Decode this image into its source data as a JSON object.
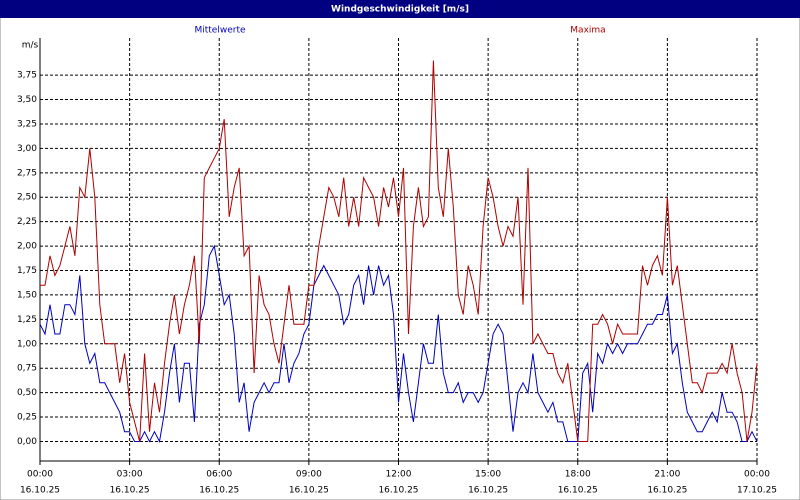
{
  "chart_data": {
    "type": "line",
    "title": "Windgeschwindigkeit [m/s]",
    "y_label": "m/s",
    "x": [
      0,
      10,
      20,
      30,
      40,
      50,
      60,
      70,
      80,
      90,
      100,
      110,
      120,
      130,
      140,
      150,
      160,
      170,
      180,
      190,
      200,
      210,
      220,
      230,
      240,
      250,
      260,
      270,
      280,
      290,
      300,
      310,
      320,
      330,
      340,
      350,
      360,
      370,
      380,
      390,
      400,
      410,
      420,
      430,
      440,
      450,
      460,
      470,
      480,
      490,
      500,
      510,
      520,
      530,
      540,
      550,
      560,
      570,
      580,
      590,
      600,
      610,
      620,
      630,
      640,
      650,
      660,
      670,
      680,
      690,
      700,
      710,
      720,
      730,
      740,
      750,
      760,
      770,
      780,
      790,
      800,
      810,
      820,
      830,
      840,
      850,
      860,
      870,
      880,
      890,
      900,
      910,
      920,
      930,
      940,
      950,
      960,
      970,
      980,
      990,
      1000,
      1010,
      1020,
      1030,
      1040,
      1050,
      1060,
      1070,
      1080,
      1090,
      1100,
      1110,
      1120,
      1130,
      1140,
      1150,
      1160,
      1170,
      1180,
      1190,
      1200,
      1210,
      1220,
      1230,
      1240,
      1250,
      1260,
      1270,
      1280,
      1290,
      1300,
      1310,
      1320,
      1330,
      1340,
      1350,
      1360,
      1370,
      1380,
      1390,
      1400,
      1410,
      1420,
      1430,
      1440
    ],
    "series": [
      {
        "name": "Mittelwerte",
        "color": "#0000c0",
        "values": [
          1.2,
          1.1,
          1.4,
          1.1,
          1.1,
          1.4,
          1.4,
          1.3,
          1.7,
          1.0,
          0.8,
          0.9,
          0.6,
          0.6,
          0.5,
          0.4,
          0.3,
          0.1,
          0.1,
          0.0,
          0.0,
          0.1,
          0.0,
          0.1,
          0.0,
          0.3,
          0.7,
          1.0,
          0.4,
          0.8,
          0.8,
          0.2,
          1.2,
          1.4,
          1.9,
          2.0,
          1.7,
          1.4,
          1.5,
          1.1,
          0.4,
          0.6,
          0.1,
          0.4,
          0.5,
          0.6,
          0.5,
          0.6,
          0.6,
          1.0,
          0.6,
          0.8,
          0.9,
          1.1,
          1.2,
          1.6,
          1.7,
          1.8,
          1.7,
          1.6,
          1.5,
          1.2,
          1.3,
          1.6,
          1.7,
          1.4,
          1.8,
          1.5,
          1.8,
          1.6,
          1.7,
          1.3,
          0.4,
          0.9,
          0.5,
          0.2,
          0.6,
          1.0,
          0.8,
          0.8,
          1.3,
          0.7,
          0.5,
          0.5,
          0.6,
          0.4,
          0.5,
          0.5,
          0.4,
          0.5,
          0.8,
          1.1,
          1.2,
          1.1,
          0.6,
          0.1,
          0.5,
          0.6,
          0.5,
          0.9,
          0.5,
          0.4,
          0.3,
          0.4,
          0.2,
          0.2,
          0.0,
          0.0,
          0.0,
          0.7,
          0.8,
          0.3,
          0.9,
          0.8,
          1.0,
          0.9,
          1.0,
          0.9,
          1.0,
          1.0,
          1.0,
          1.1,
          1.2,
          1.2,
          1.3,
          1.3,
          1.5,
          0.9,
          1.0,
          0.6,
          0.3,
          0.2,
          0.1,
          0.1,
          0.2,
          0.3,
          0.2,
          0.5,
          0.3,
          0.3,
          0.2,
          0.0,
          0.0,
          0.1,
          0.0
        ]
      },
      {
        "name": "Maxima",
        "color": "#b00000",
        "values": [
          1.6,
          1.6,
          1.9,
          1.7,
          1.8,
          2.0,
          2.2,
          1.9,
          2.6,
          2.5,
          3.0,
          2.5,
          1.4,
          1.0,
          1.0,
          1.0,
          0.6,
          0.9,
          0.4,
          0.2,
          0.0,
          0.9,
          0.1,
          0.6,
          0.3,
          0.8,
          1.2,
          1.5,
          1.1,
          1.4,
          1.6,
          1.9,
          1.0,
          2.7,
          2.8,
          2.9,
          3.0,
          3.3,
          2.3,
          2.6,
          2.8,
          1.9,
          2.0,
          0.7,
          1.7,
          1.4,
          1.3,
          1.0,
          0.8,
          1.2,
          1.6,
          1.2,
          1.2,
          1.2,
          1.6,
          1.6,
          2.0,
          2.3,
          2.6,
          2.5,
          2.3,
          2.7,
          2.2,
          2.5,
          2.2,
          2.7,
          2.6,
          2.5,
          2.2,
          2.6,
          2.4,
          2.7,
          2.3,
          2.8,
          1.1,
          2.2,
          2.6,
          2.2,
          2.3,
          3.9,
          2.6,
          2.3,
          3.0,
          2.4,
          1.5,
          1.3,
          1.8,
          1.6,
          1.3,
          2.2,
          2.7,
          2.5,
          2.2,
          2.0,
          2.2,
          2.1,
          2.5,
          1.4,
          2.8,
          1.0,
          1.1,
          1.0,
          0.9,
          0.9,
          0.7,
          0.6,
          0.8,
          0.4,
          0.0,
          0.0,
          0.0,
          1.2,
          1.2,
          1.3,
          1.2,
          1.0,
          1.2,
          1.1,
          1.1,
          1.1,
          1.1,
          1.8,
          1.6,
          1.8,
          1.9,
          1.7,
          2.5,
          1.6,
          1.8,
          1.4,
          1.0,
          0.6,
          0.6,
          0.5,
          0.7,
          0.7,
          0.7,
          0.8,
          0.7,
          1.0,
          0.7,
          0.5,
          0.0,
          0.3,
          0.8
        ]
      }
    ],
    "xlim": [
      0,
      1440
    ],
    "xticks": [
      {
        "value": 0,
        "label": "00:00"
      },
      {
        "value": 180,
        "label": "03:00"
      },
      {
        "value": 360,
        "label": "06:00"
      },
      {
        "value": 540,
        "label": "09:00"
      },
      {
        "value": 720,
        "label": "12:00"
      },
      {
        "value": 900,
        "label": "15:00"
      },
      {
        "value": 1080,
        "label": "18:00"
      },
      {
        "value": 1260,
        "label": "21:00"
      },
      {
        "value": 1440,
        "label": "00:00"
      }
    ],
    "xtick_dates": [
      "16.10.25",
      "16.10.25",
      "16.10.25",
      "16.10.25",
      "16.10.25",
      "16.10.25",
      "16.10.25",
      "16.10.25",
      "17.10.25"
    ],
    "ylim": [
      -0.2,
      4.13
    ],
    "yticks": [
      {
        "value": 0,
        "label": "0,00"
      },
      {
        "value": 0.25,
        "label": "0,25"
      },
      {
        "value": 0.5,
        "label": "0,50"
      },
      {
        "value": 0.75,
        "label": "0,75"
      },
      {
        "value": 1,
        "label": "1,00"
      },
      {
        "value": 1.25,
        "label": "1,25"
      },
      {
        "value": 1.5,
        "label": "1,50"
      },
      {
        "value": 1.75,
        "label": "1,75"
      },
      {
        "value": 2,
        "label": "2,00"
      },
      {
        "value": 2.25,
        "label": "2,25"
      },
      {
        "value": 2.5,
        "label": "2,50"
      },
      {
        "value": 2.75,
        "label": "2,75"
      },
      {
        "value": 3,
        "label": "3,00"
      },
      {
        "value": 3.25,
        "label": "3,25"
      },
      {
        "value": 3.5,
        "label": "3,50"
      },
      {
        "value": 3.75,
        "label": "3,75"
      }
    ],
    "grid": true
  }
}
